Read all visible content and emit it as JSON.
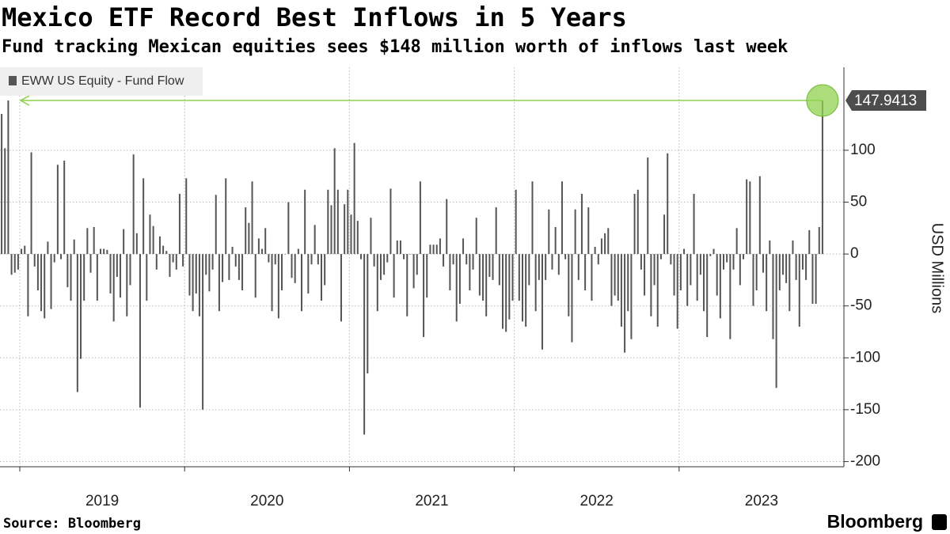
{
  "chart_data": {
    "type": "bar",
    "title": "Mexico ETF Record Best Inflows in 5 Years",
    "subtitle": "Fund tracking Mexican equities sees $148 million worth of inflows last week",
    "y_axis_label": "USD Millions",
    "source": "Source: Bloomberg",
    "brand": "Bloomberg",
    "x": [
      2018.89,
      2018.91,
      2018.93,
      2018.95,
      2018.97,
      2018.99,
      2019.01,
      2019.03,
      2019.05,
      2019.07,
      2019.09,
      2019.11,
      2019.13,
      2019.15,
      2019.17,
      2019.19,
      2019.21,
      2019.23,
      2019.25,
      2019.27,
      2019.29,
      2019.31,
      2019.33,
      2019.35,
      2019.37,
      2019.39,
      2019.41,
      2019.43,
      2019.45,
      2019.47,
      2019.49,
      2019.51,
      2019.53,
      2019.55,
      2019.57,
      2019.59,
      2019.61,
      2019.63,
      2019.65,
      2019.67,
      2019.69,
      2019.71,
      2019.73,
      2019.75,
      2019.77,
      2019.79,
      2019.81,
      2019.83,
      2019.85,
      2019.87,
      2019.89,
      2019.91,
      2019.93,
      2019.95,
      2019.97,
      2019.99,
      2020.01,
      2020.03,
      2020.05,
      2020.07,
      2020.09,
      2020.11,
      2020.13,
      2020.15,
      2020.17,
      2020.19,
      2020.21,
      2020.23,
      2020.25,
      2020.27,
      2020.29,
      2020.31,
      2020.33,
      2020.35,
      2020.37,
      2020.39,
      2020.41,
      2020.43,
      2020.45,
      2020.47,
      2020.49,
      2020.51,
      2020.53,
      2020.55,
      2020.57,
      2020.59,
      2020.61,
      2020.63,
      2020.65,
      2020.67,
      2020.69,
      2020.71,
      2020.73,
      2020.75,
      2020.77,
      2020.79,
      2020.81,
      2020.83,
      2020.85,
      2020.87,
      2020.89,
      2020.91,
      2020.93,
      2020.95,
      2020.97,
      2020.99,
      2021.01,
      2021.03,
      2021.05,
      2021.07,
      2021.09,
      2021.11,
      2021.13,
      2021.15,
      2021.17,
      2021.19,
      2021.21,
      2021.23,
      2021.25,
      2021.27,
      2021.29,
      2021.31,
      2021.33,
      2021.35,
      2021.37,
      2021.39,
      2021.41,
      2021.43,
      2021.45,
      2021.47,
      2021.49,
      2021.51,
      2021.53,
      2021.55,
      2021.57,
      2021.59,
      2021.61,
      2021.63,
      2021.65,
      2021.67,
      2021.69,
      2021.71,
      2021.73,
      2021.75,
      2021.77,
      2021.79,
      2021.81,
      2021.83,
      2021.85,
      2021.87,
      2021.89,
      2021.91,
      2021.93,
      2021.95,
      2021.97,
      2021.99,
      2022.01,
      2022.03,
      2022.05,
      2022.07,
      2022.09,
      2022.11,
      2022.13,
      2022.15,
      2022.17,
      2022.19,
      2022.21,
      2022.23,
      2022.25,
      2022.27,
      2022.29,
      2022.31,
      2022.33,
      2022.35,
      2022.37,
      2022.39,
      2022.41,
      2022.43,
      2022.45,
      2022.47,
      2022.49,
      2022.51,
      2022.53,
      2022.55,
      2022.57,
      2022.59,
      2022.61,
      2022.63,
      2022.65,
      2022.67,
      2022.69,
      2022.71,
      2022.73,
      2022.75,
      2022.77,
      2022.79,
      2022.81,
      2022.83,
      2022.85,
      2022.87,
      2022.89,
      2022.91,
      2022.93,
      2022.95,
      2022.97,
      2022.99,
      2023.01,
      2023.03,
      2023.05,
      2023.07,
      2023.09,
      2023.11,
      2023.13,
      2023.15,
      2023.17,
      2023.19,
      2023.21,
      2023.23,
      2023.25,
      2023.27,
      2023.29,
      2023.31,
      2023.33,
      2023.35,
      2023.37,
      2023.39,
      2023.41,
      2023.43,
      2023.45,
      2023.47,
      2023.49,
      2023.51,
      2023.53,
      2023.55,
      2023.57,
      2023.59,
      2023.61,
      2023.63,
      2023.65,
      2023.67,
      2023.69,
      2023.71,
      2023.73,
      2023.75,
      2023.77,
      2023.79,
      2023.81,
      2023.83,
      2023.85,
      2023.87
    ],
    "series": [
      {
        "name": "EWW US Equity - Fund Flow",
        "color": "#555555",
        "values": [
          135,
          102,
          148,
          -20,
          -18,
          -15,
          5,
          8,
          -60,
          98,
          -12,
          -35,
          -55,
          -62,
          12,
          -53,
          -8,
          86,
          -5,
          90,
          -32,
          -45,
          14,
          -133,
          -101,
          -45,
          25,
          -18,
          26,
          -45,
          5,
          5,
          4,
          -38,
          -65,
          -22,
          -42,
          24,
          -60,
          -30,
          96,
          20,
          -148,
          73,
          -45,
          38,
          27,
          -15,
          17,
          8,
          3,
          -22,
          -8,
          -15,
          58,
          -12,
          73,
          -40,
          -55,
          -38,
          -60,
          -150,
          -20,
          -36,
          -15,
          57,
          -55,
          -27,
          73,
          -25,
          7,
          -12,
          -25,
          -35,
          45,
          30,
          70,
          -42,
          15,
          5,
          25,
          -8,
          -55,
          -10,
          -62,
          -35,
          0,
          50,
          -23,
          -28,
          5,
          -55,
          62,
          -38,
          -10,
          28,
          -10,
          -45,
          -30,
          62,
          47,
          102,
          62,
          -65,
          48,
          62,
          38,
          107,
          32,
          -5,
          -174,
          -115,
          35,
          -12,
          -55,
          -25,
          -20,
          -8,
          63,
          -42,
          13,
          13,
          -5,
          -60,
          0,
          -33,
          -20,
          70,
          -80,
          -42,
          9,
          9,
          9,
          15,
          -12,
          53,
          -35,
          -10,
          -65,
          -48,
          15,
          -10,
          -35,
          -15,
          35,
          -40,
          -45,
          -60,
          -22,
          -25,
          45,
          -30,
          -72,
          -75,
          -63,
          -45,
          62,
          -45,
          -65,
          -70,
          -30,
          70,
          -55,
          -25,
          -92,
          -25,
          43,
          -15,
          26,
          -20,
          70,
          -5,
          -60,
          -85,
          43,
          -25,
          58,
          -35,
          45,
          -45,
          7,
          -10,
          15,
          20,
          25,
          -50,
          -40,
          -45,
          -70,
          -95,
          -55,
          -82,
          58,
          62,
          -15,
          -40,
          93,
          -60,
          -30,
          -70,
          -5,
          38,
          97,
          -10,
          -40,
          -72,
          -35,
          5,
          -50,
          -30,
          58,
          -45,
          -20,
          -55,
          -80,
          -2,
          5,
          -40,
          -62,
          -15,
          -8,
          -82,
          -15,
          25,
          -30,
          -5,
          72,
          70,
          -50,
          -35,
          75,
          -18,
          -55,
          13,
          -82,
          -129,
          -35,
          -20,
          -28,
          -55,
          13,
          -25,
          -70,
          -15,
          -25,
          23,
          -48,
          -48,
          26,
          147.9413
        ]
      }
    ],
    "highlight_color": "#8fd14f",
    "xlim": [
      2018.88,
      2024.0
    ],
    "xgrid": [
      2019,
      2020,
      2021,
      2022,
      2023
    ],
    "xticks": [
      {
        "value": 2019.5,
        "label": "2019"
      },
      {
        "value": 2020.5,
        "label": "2020"
      },
      {
        "value": 2021.5,
        "label": "2021"
      },
      {
        "value": 2022.5,
        "label": "2022"
      },
      {
        "value": 2023.5,
        "label": "2023"
      }
    ],
    "ylim": [
      -205,
      180
    ],
    "yticks": [
      100,
      50,
      0,
      -50,
      -100,
      -150,
      -200
    ],
    "grid": true
  }
}
